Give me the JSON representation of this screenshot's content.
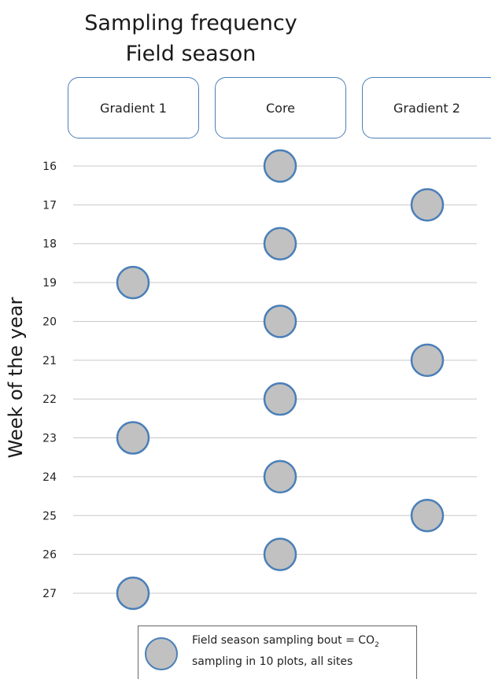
{
  "title_line1": "Sampling frequency",
  "title_line2": "Field season",
  "columns": [
    "Gradient 1",
    "Core",
    "Gradient 2"
  ],
  "colors": {
    "box_border": "#4a7fb8",
    "marker_fill": "#c1c1c1",
    "marker_stroke": "#4a7fb8",
    "gridline": "#c8c8c8"
  },
  "legend": {
    "line1": "Field season sampling bout = CO",
    "subscript": "2",
    "line2": "sampling in 10 plots, all sites"
  },
  "chart_data": {
    "type": "scatter",
    "title": "Sampling frequency Field season",
    "ylabel": "Week of the year",
    "categories": [
      "Gradient 1",
      "Core",
      "Gradient 2"
    ],
    "y_ticks": [
      16,
      17,
      18,
      19,
      20,
      21,
      22,
      23,
      24,
      25,
      26,
      27
    ],
    "ylim": [
      16,
      27
    ],
    "points": [
      {
        "column": "Core",
        "week": 16
      },
      {
        "column": "Gradient 2",
        "week": 17
      },
      {
        "column": "Core",
        "week": 18
      },
      {
        "column": "Gradient 1",
        "week": 19
      },
      {
        "column": "Core",
        "week": 20
      },
      {
        "column": "Gradient 2",
        "week": 21
      },
      {
        "column": "Core",
        "week": 22
      },
      {
        "column": "Gradient 1",
        "week": 23
      },
      {
        "column": "Core",
        "week": 24
      },
      {
        "column": "Gradient 2",
        "week": 25
      },
      {
        "column": "Core",
        "week": 26
      },
      {
        "column": "Gradient 1",
        "week": 27
      }
    ],
    "grid": true,
    "legend_position": "bottom"
  }
}
